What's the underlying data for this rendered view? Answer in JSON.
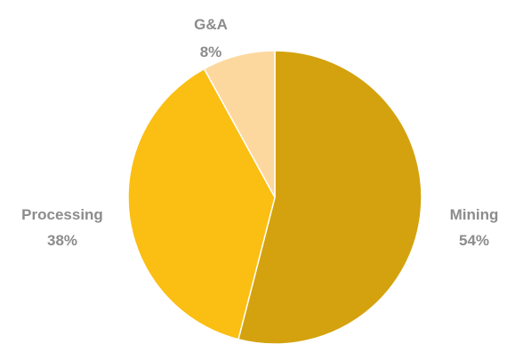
{
  "chart_data": {
    "type": "pie",
    "title": "",
    "start": "top",
    "direction": "clockwise",
    "slices": [
      {
        "label": "Mining",
        "value": 54,
        "value_label": "54%",
        "color": "#D4A20E"
      },
      {
        "label": "Processing",
        "value": 38,
        "value_label": "38%",
        "color": "#FBBE12"
      },
      {
        "label": "G&A",
        "value": 8,
        "value_label": "8%",
        "color": "#FDD89E"
      }
    ],
    "legend": "none",
    "label_color": "#8C8C8C"
  }
}
